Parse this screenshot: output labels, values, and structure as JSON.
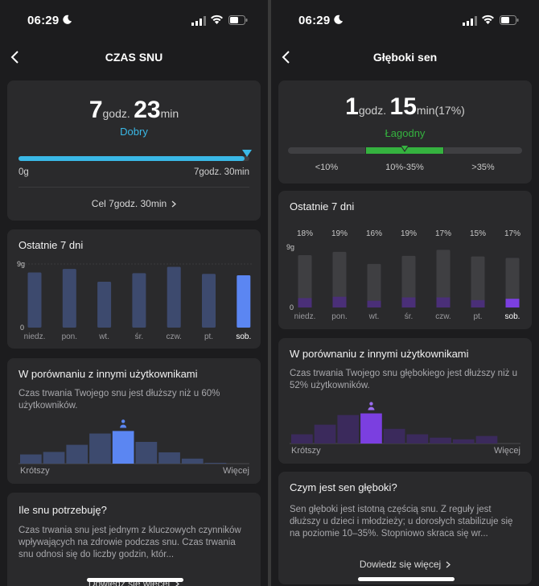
{
  "status": {
    "time": "06:29"
  },
  "left": {
    "nav_title": "CZAS SNU",
    "summary": {
      "hours": "7",
      "hours_unit": "godz.",
      "minutes": "23",
      "minutes_unit": "min",
      "quality": "Dobry",
      "progress_fraction": 0.98,
      "scale_min": "0g",
      "scale_max": "7godz. 30min",
      "goal_label": "Cel 7godz. 30min"
    },
    "last7": {
      "title": "Ostatnie 7 dni",
      "y_top": "9g",
      "y_bottom": "0",
      "categories": [
        "niedz.",
        "pon.",
        "wt.",
        "śr.",
        "czw.",
        "pt.",
        "sob."
      ],
      "values": [
        7.8,
        8.3,
        6.5,
        7.7,
        8.6,
        7.6,
        7.4
      ],
      "ymax": 9,
      "highlight_index": 6
    },
    "compare": {
      "title": "W porównaniu z innymi użytkownikami",
      "text": "Czas trwania Twojego snu jest dłuższy niż u 60% użytkowników.",
      "bins": [
        0.22,
        0.28,
        0.45,
        0.72,
        0.78,
        0.52,
        0.27,
        0.12,
        0.02
      ],
      "user_bin": 4,
      "left_label": "Krótszy",
      "right_label": "Więcej"
    },
    "need": {
      "title": "Ile snu potrzebuję?",
      "text": "Czas trwania snu jest jednym z kluczowych czynników wpływających na zdrowie podczas snu. Czas trwania snu odnosi się do liczby godzin, któr...",
      "link": "Dowiedz się więcej"
    }
  },
  "right": {
    "nav_title": "Głęboki sen",
    "summary": {
      "hours": "1",
      "hours_unit": "godz.",
      "minutes": "15",
      "minutes_unit": "min(17%)",
      "quality": "Łagodny",
      "range_labels": [
        "<10%",
        "10%-35%",
        ">35%"
      ]
    },
    "last7": {
      "title": "Ostatnie 7 dni",
      "y_top": "9g",
      "y_bottom": "0",
      "percents": [
        "18%",
        "19%",
        "16%",
        "19%",
        "17%",
        "15%",
        "17%"
      ],
      "categories": [
        "niedz.",
        "pon.",
        "wt.",
        "śr.",
        "czw.",
        "pt.",
        "sob."
      ],
      "total": [
        7.8,
        8.3,
        6.5,
        7.7,
        8.6,
        7.6,
        7.4
      ],
      "deep": [
        1.4,
        1.6,
        1.0,
        1.5,
        1.5,
        1.1,
        1.3
      ],
      "ymax": 9,
      "highlight_index": 6
    },
    "compare": {
      "title": "W porównaniu z innymi użytkownikami",
      "text": "Czas trwania Twojego snu głębokiego jest dłuższy niż u 52% użytkowników.",
      "bins": [
        0.22,
        0.45,
        0.68,
        0.72,
        0.35,
        0.22,
        0.14,
        0.1,
        0.18
      ],
      "user_bin": 3,
      "left_label": "Krótszy",
      "right_label": "Więcej"
    },
    "what": {
      "title": "Czym jest sen głęboki?",
      "text": "Sen głęboki jest istotną częścią snu. Z reguły jest dłuższy u dzieci i młodzieży; u dorosłych stabilizuje się na poziomie 10–35%. Stopniowo skraca się wr...",
      "link": "Dowiedz się więcej"
    }
  },
  "colors": {
    "accent_blue": "#3ab8e6",
    "bar_blue": "#3d4a6e",
    "bar_blue_hl": "#5b86f2",
    "green": "#35b23f",
    "purple": "#7b3fe0",
    "purple_dark": "#3b2a5c",
    "gray_bar": "#3f3f42"
  }
}
